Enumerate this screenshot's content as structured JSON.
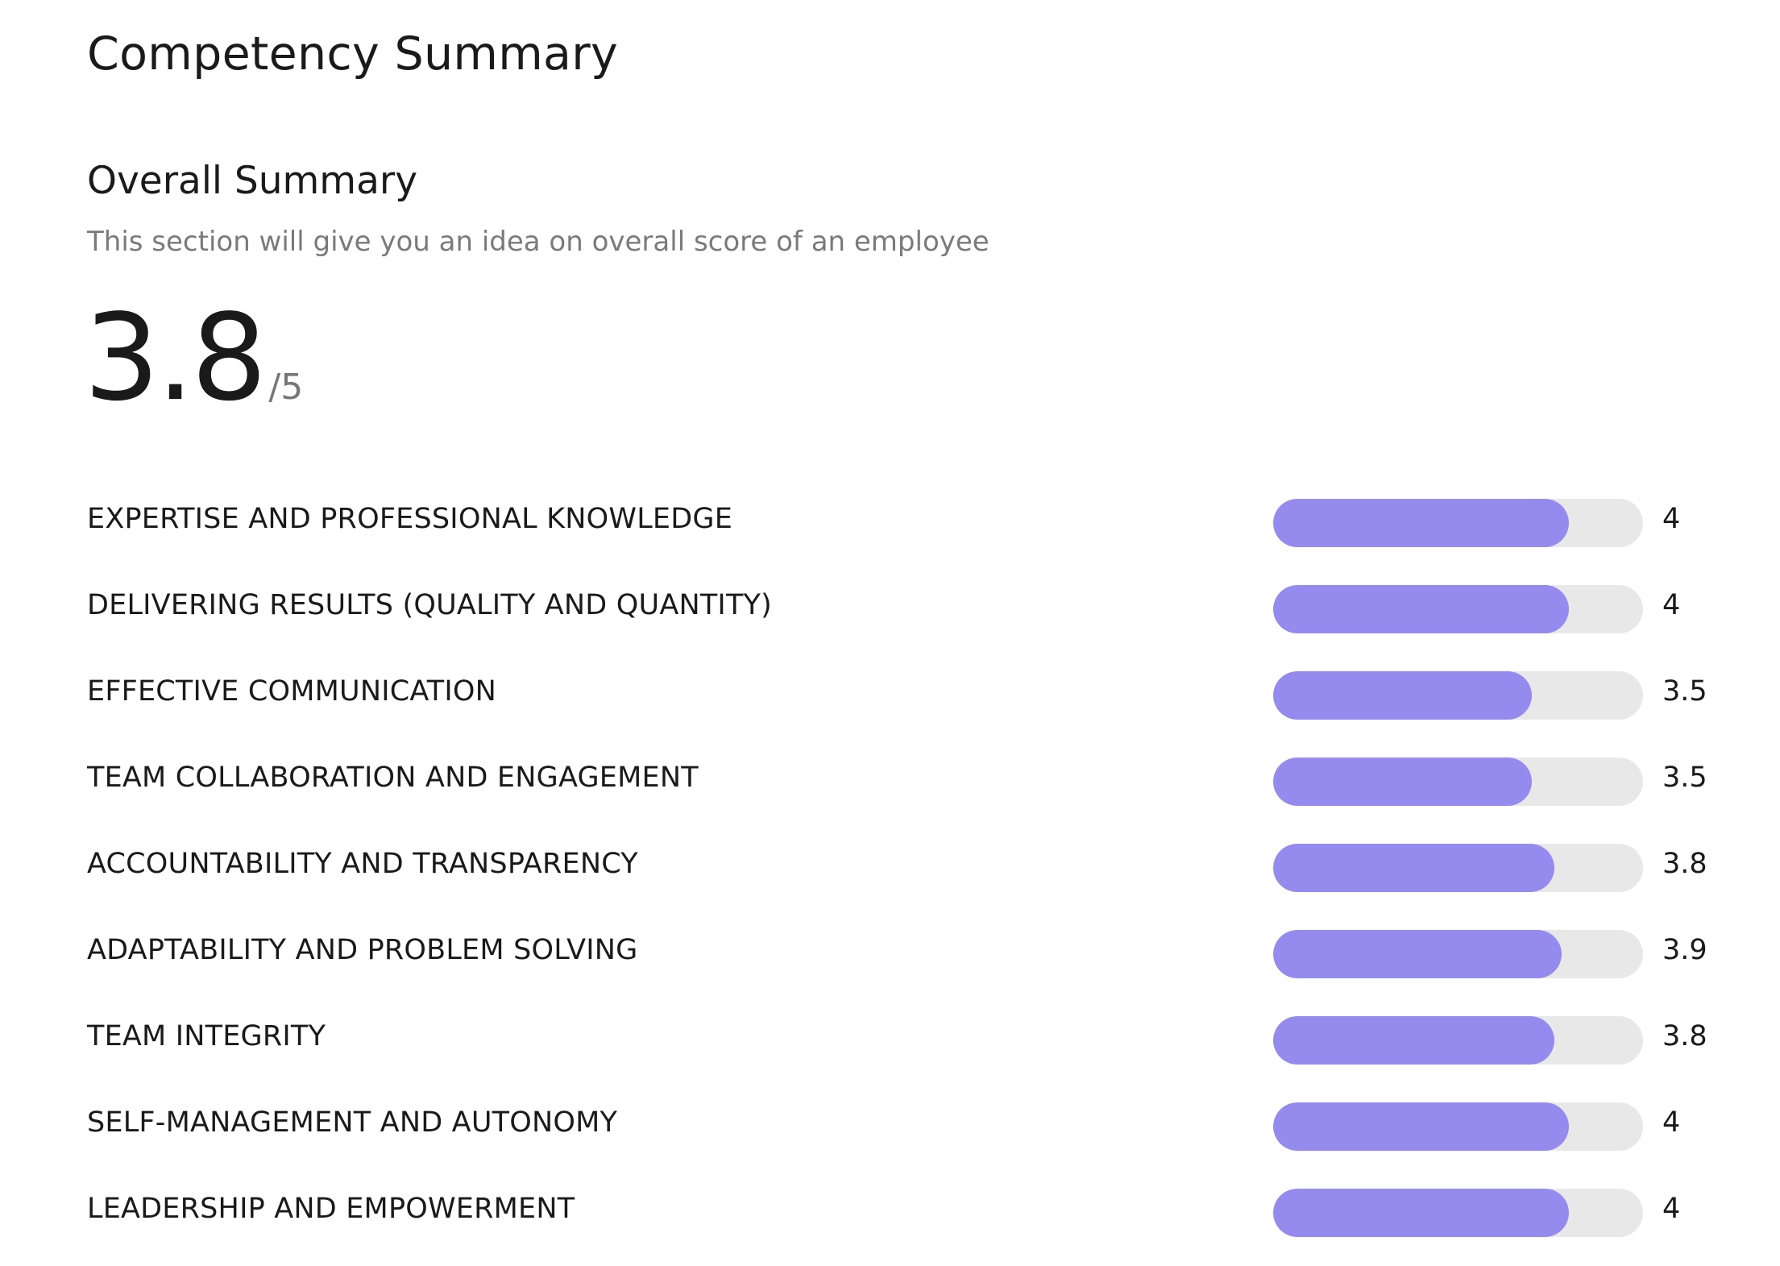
{
  "page": {
    "title": "Competency Summary"
  },
  "overall": {
    "title": "Overall Summary",
    "subtitle": "This section will give you an idea on overall score of an employee",
    "score": "3.8",
    "max": "/5"
  },
  "colors": {
    "bar_fill": "#958bef",
    "bar_track": "#e8e8e8",
    "subtitle_text": "#7a7a7a"
  },
  "competencies": [
    {
      "label": "EXPERTISE AND PROFESSIONAL KNOWLEDGE",
      "value": "4",
      "score": 4.0
    },
    {
      "label": "DELIVERING RESULTS (QUALITY AND QUANTITY)",
      "value": "4",
      "score": 4.0
    },
    {
      "label": "EFFECTIVE COMMUNICATION",
      "value": "3.5",
      "score": 3.5
    },
    {
      "label": "TEAM COLLABORATION AND ENGAGEMENT",
      "value": "3.5",
      "score": 3.5
    },
    {
      "label": "ACCOUNTABILITY AND TRANSPARENCY",
      "value": "3.8",
      "score": 3.8
    },
    {
      "label": "ADAPTABILITY AND PROBLEM SOLVING",
      "value": "3.9",
      "score": 3.9
    },
    {
      "label": "TEAM INTEGRITY",
      "value": "3.8",
      "score": 3.8
    },
    {
      "label": "SELF-MANAGEMENT AND AUTONOMY",
      "value": "4",
      "score": 4.0
    },
    {
      "label": "LEADERSHIP AND EMPOWERMENT",
      "value": "4",
      "score": 4.0
    }
  ],
  "scale_max": 5
}
